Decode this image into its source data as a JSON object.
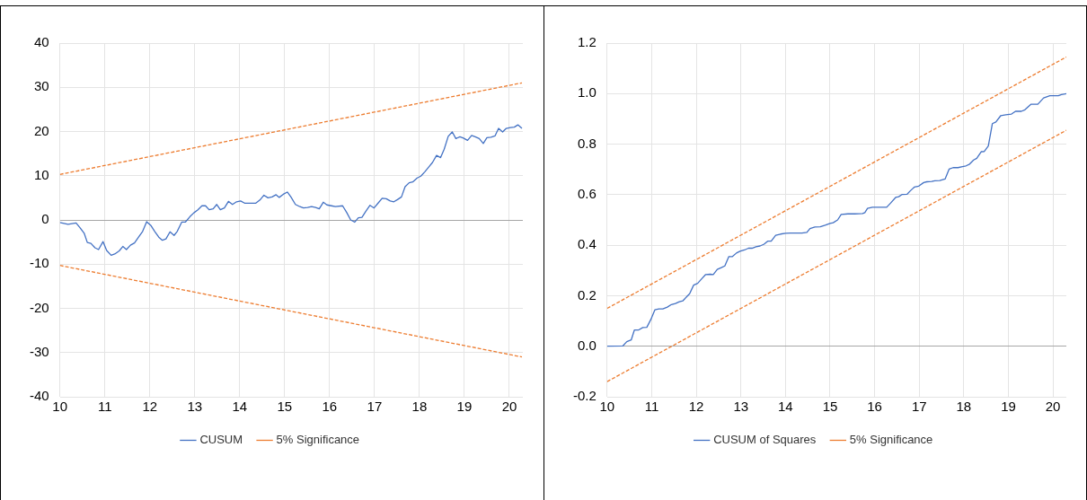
{
  "chart_data": [
    {
      "type": "line",
      "xlim": [
        10,
        20.3
      ],
      "xticks": [
        10,
        11,
        12,
        13,
        14,
        15,
        16,
        17,
        18,
        19,
        20
      ],
      "ylim": [
        -40,
        40
      ],
      "yticks": [
        -40,
        -30,
        -20,
        -10,
        0,
        10,
        20,
        30,
        40
      ],
      "grid": true,
      "legend": "bottom",
      "marker": "none",
      "series": [
        {
          "name": "CUSUM",
          "color": "#4472c4",
          "line_style": "solid",
          "x": [
            10.0,
            10.18,
            10.36,
            10.45,
            10.54,
            10.61,
            10.69,
            10.78,
            10.86,
            10.96,
            11.04,
            11.14,
            11.22,
            11.32,
            11.4,
            11.48,
            11.57,
            11.66,
            11.75,
            11.84,
            11.93,
            12.02,
            12.11,
            12.2,
            12.28,
            12.36,
            12.45,
            12.54,
            12.61,
            12.71,
            12.79,
            12.89,
            12.98,
            13.07,
            13.16,
            13.24,
            13.32,
            13.41,
            13.49,
            13.57,
            13.66,
            13.75,
            13.84,
            13.93,
            14.02,
            14.11,
            14.27,
            14.36,
            14.45,
            14.54,
            14.63,
            14.72,
            14.81,
            14.88,
            14.97,
            15.06,
            15.14,
            15.24,
            15.34,
            15.42,
            15.51,
            15.6,
            15.69,
            15.77,
            15.86,
            15.94,
            16.04,
            16.13,
            16.29,
            16.38,
            16.47,
            16.56,
            16.64,
            16.72,
            16.81,
            16.9,
            16.99,
            17.08,
            17.17,
            17.26,
            17.35,
            17.43,
            17.51,
            17.6,
            17.68,
            17.77,
            17.85,
            17.95,
            18.03,
            18.12,
            18.21,
            18.29,
            18.38,
            18.47,
            18.55,
            18.64,
            18.73,
            18.81,
            18.9,
            18.98,
            19.07,
            19.16,
            19.24,
            19.33,
            19.42,
            19.5,
            19.59,
            19.68,
            19.76,
            19.85,
            19.93,
            20.02,
            20.11,
            20.19,
            20.28
          ],
          "values": [
            -0.6,
            -1.0,
            -0.7,
            -1.8,
            -3.0,
            -5.1,
            -5.3,
            -6.3,
            -6.7,
            -4.9,
            -6.9,
            -8.0,
            -7.7,
            -7.0,
            -6.0,
            -6.7,
            -5.7,
            -5.2,
            -3.9,
            -2.6,
            -0.4,
            -1.2,
            -2.6,
            -3.9,
            -4.6,
            -4.3,
            -2.7,
            -3.5,
            -2.6,
            -0.5,
            -0.5,
            0.7,
            1.6,
            2.3,
            3.2,
            3.2,
            2.3,
            2.5,
            3.5,
            2.3,
            2.7,
            4.2,
            3.5,
            4.1,
            4.3,
            3.8,
            3.8,
            3.8,
            4.5,
            5.6,
            5.0,
            5.2,
            5.7,
            5.1,
            5.8,
            6.3,
            5.2,
            3.5,
            3.0,
            2.7,
            2.8,
            3.0,
            2.8,
            2.5,
            4.0,
            3.4,
            3.2,
            3.0,
            3.2,
            1.7,
            0.0,
            -0.5,
            0.5,
            0.6,
            2.0,
            3.3,
            2.7,
            3.8,
            4.9,
            4.8,
            4.3,
            4.1,
            4.6,
            5.2,
            7.5,
            8.4,
            8.6,
            9.5,
            9.9,
            10.9,
            12.0,
            13.0,
            14.6,
            14.1,
            16.0,
            18.9,
            19.9,
            18.4,
            18.8,
            18.5,
            18.0,
            19.1,
            18.8,
            18.4,
            17.3,
            18.6,
            18.7,
            19.0,
            20.7,
            19.9,
            20.7,
            20.9,
            21.0,
            21.5,
            20.7
          ]
        },
        {
          "name": "5% Significance",
          "color": "#ed7d31",
          "line_style": "dashed",
          "x": [
            10,
            20.28
          ],
          "values": [
            10.3,
            31.0
          ]
        },
        {
          "color": "#ed7d31",
          "line_style": "dashed",
          "x": [
            10,
            20.28
          ],
          "values": [
            -10.3,
            -31.0
          ]
        }
      ]
    },
    {
      "type": "line",
      "xlim": [
        10,
        20.3
      ],
      "xticks": [
        10,
        11,
        12,
        13,
        14,
        15,
        16,
        17,
        18,
        19,
        20
      ],
      "ylim": [
        -0.2,
        1.2
      ],
      "yticks": [
        {
          "value": -0.2,
          "label": "-0.2"
        },
        {
          "value": 0,
          "label": "0.0"
        },
        {
          "value": 0.2,
          "label": "0.2"
        },
        {
          "value": 0.4,
          "label": "0.4"
        },
        {
          "value": 0.6,
          "label": "0.6"
        },
        {
          "value": 0.8,
          "label": "0.8"
        },
        {
          "value": 1,
          "label": "1.0"
        },
        {
          "value": 1.2,
          "label": "1.2"
        }
      ],
      "grid": true,
      "legend": "bottom",
      "marker": "none",
      "series": [
        {
          "name": "CUSUM of Squares",
          "color": "#4472c4",
          "line_style": "solid",
          "x": [
            10.0,
            10.35,
            10.44,
            10.54,
            10.61,
            10.7,
            10.8,
            10.89,
            10.98,
            11.07,
            11.16,
            11.25,
            11.35,
            11.44,
            11.53,
            11.62,
            11.7,
            11.79,
            11.85,
            11.94,
            12.03,
            12.12,
            12.21,
            12.31,
            12.38,
            12.47,
            12.56,
            12.64,
            12.73,
            12.81,
            12.9,
            12.98,
            13.08,
            13.17,
            13.25,
            13.34,
            13.43,
            13.52,
            13.6,
            13.68,
            13.78,
            13.89,
            14.0,
            14.11,
            14.22,
            14.37,
            14.48,
            14.55,
            14.66,
            14.78,
            14.89,
            15.0,
            15.07,
            15.17,
            15.25,
            15.4,
            15.55,
            15.73,
            15.78,
            15.84,
            15.95,
            16.1,
            16.27,
            16.36,
            16.47,
            16.54,
            16.62,
            16.73,
            16.8,
            16.89,
            16.99,
            17.1,
            17.17,
            17.28,
            17.35,
            17.46,
            17.58,
            17.67,
            17.76,
            17.87,
            17.97,
            18.05,
            18.13,
            18.22,
            18.29,
            18.39,
            18.46,
            18.55,
            18.64,
            18.72,
            18.83,
            18.94,
            19.07,
            19.16,
            19.29,
            19.37,
            19.51,
            19.66,
            19.79,
            19.93,
            20.12,
            20.19,
            20.3
          ],
          "values": [
            0.0,
            0.001,
            0.018,
            0.025,
            0.064,
            0.064,
            0.074,
            0.075,
            0.106,
            0.144,
            0.148,
            0.148,
            0.155,
            0.165,
            0.169,
            0.176,
            0.18,
            0.197,
            0.208,
            0.242,
            0.249,
            0.267,
            0.284,
            0.285,
            0.284,
            0.304,
            0.311,
            0.318,
            0.355,
            0.355,
            0.369,
            0.376,
            0.381,
            0.388,
            0.388,
            0.394,
            0.397,
            0.404,
            0.416,
            0.416,
            0.439,
            0.444,
            0.447,
            0.448,
            0.448,
            0.448,
            0.451,
            0.466,
            0.472,
            0.473,
            0.479,
            0.486,
            0.489,
            0.5,
            0.522,
            0.524,
            0.524,
            0.525,
            0.529,
            0.546,
            0.55,
            0.55,
            0.55,
            0.567,
            0.589,
            0.592,
            0.601,
            0.602,
            0.615,
            0.63,
            0.634,
            0.648,
            0.651,
            0.652,
            0.655,
            0.656,
            0.662,
            0.701,
            0.707,
            0.707,
            0.711,
            0.714,
            0.721,
            0.737,
            0.744,
            0.77,
            0.771,
            0.793,
            0.881,
            0.888,
            0.913,
            0.916,
            0.919,
            0.93,
            0.93,
            0.936,
            0.958,
            0.958,
            0.983,
            0.992,
            0.992,
            0.996,
            1.0
          ]
        },
        {
          "name": "5% Significance",
          "color": "#ed7d31",
          "line_style": "dashed",
          "x": [
            10,
            20.3
          ],
          "values": [
            0.15,
            1.145
          ]
        },
        {
          "color": "#ed7d31",
          "line_style": "dashed",
          "x": [
            10,
            20.3
          ],
          "values": [
            -0.14,
            0.855
          ]
        }
      ]
    }
  ]
}
